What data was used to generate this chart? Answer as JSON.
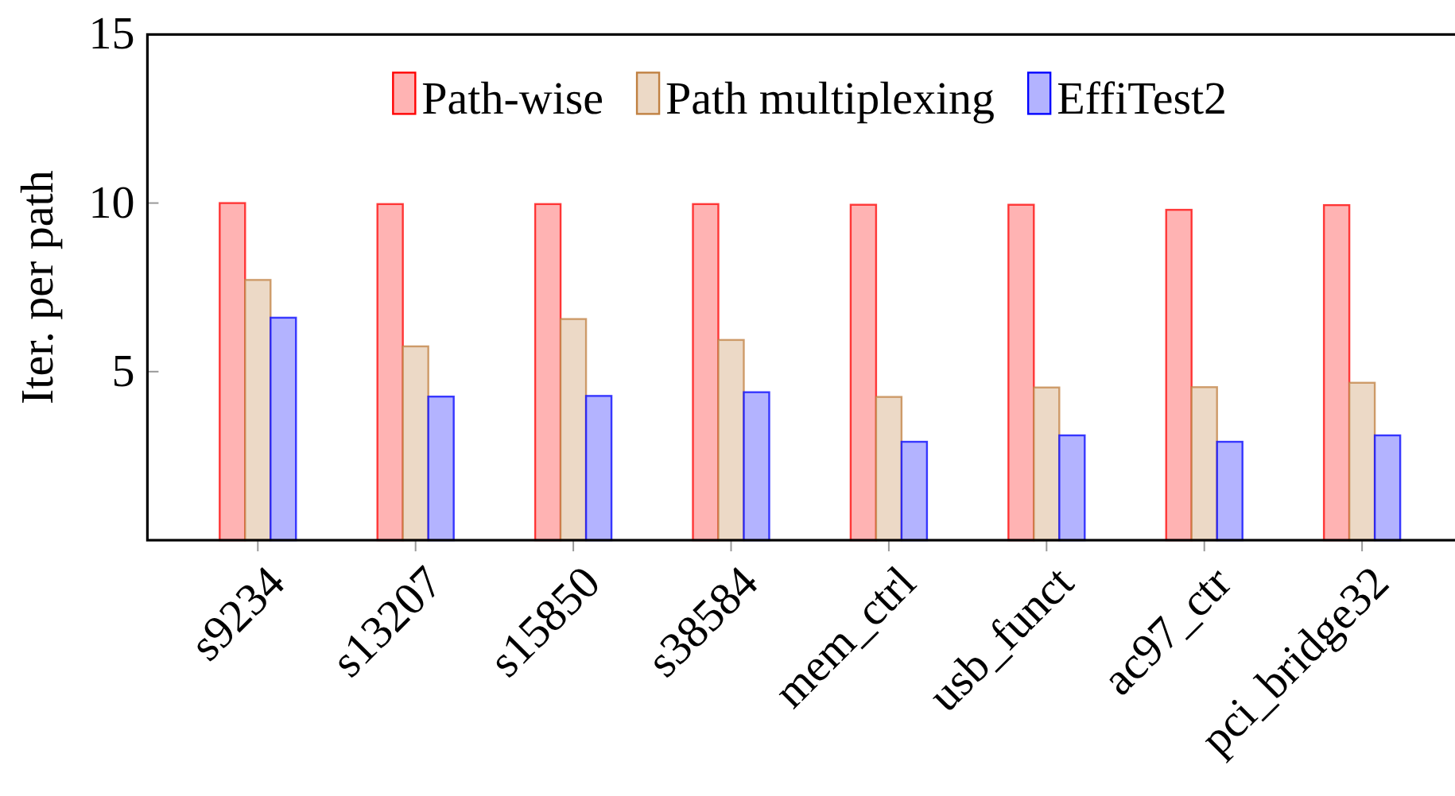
{
  "chart_data": {
    "type": "bar",
    "ylabel": "Iter. per path",
    "categories": [
      "s9234",
      "s13207",
      "s15850",
      "s38584",
      "mem_ctrl",
      "usb_funct",
      "ac97_ctr",
      "pci_bridge32"
    ],
    "series": [
      {
        "name": "Path-wise",
        "color": "#ffb3b3",
        "values": [
          10,
          9.97,
          9.97,
          9.97,
          9.95,
          9.95,
          9.8,
          9.94
        ]
      },
      {
        "name": "Path multiplexing",
        "color": "#ecd9c6",
        "values": [
          7.72,
          5.75,
          6.56,
          5.94,
          4.25,
          4.53,
          4.54,
          4.67
        ]
      },
      {
        "name": "EffiTest2",
        "color": "#b3b3ff",
        "values": [
          6.6,
          4.26,
          4.28,
          4.39,
          2.92,
          3.11,
          2.92,
          3.11
        ]
      }
    ],
    "ylim": [
      0,
      15
    ],
    "yticks": [
      5,
      10,
      15
    ],
    "legend": "top"
  }
}
